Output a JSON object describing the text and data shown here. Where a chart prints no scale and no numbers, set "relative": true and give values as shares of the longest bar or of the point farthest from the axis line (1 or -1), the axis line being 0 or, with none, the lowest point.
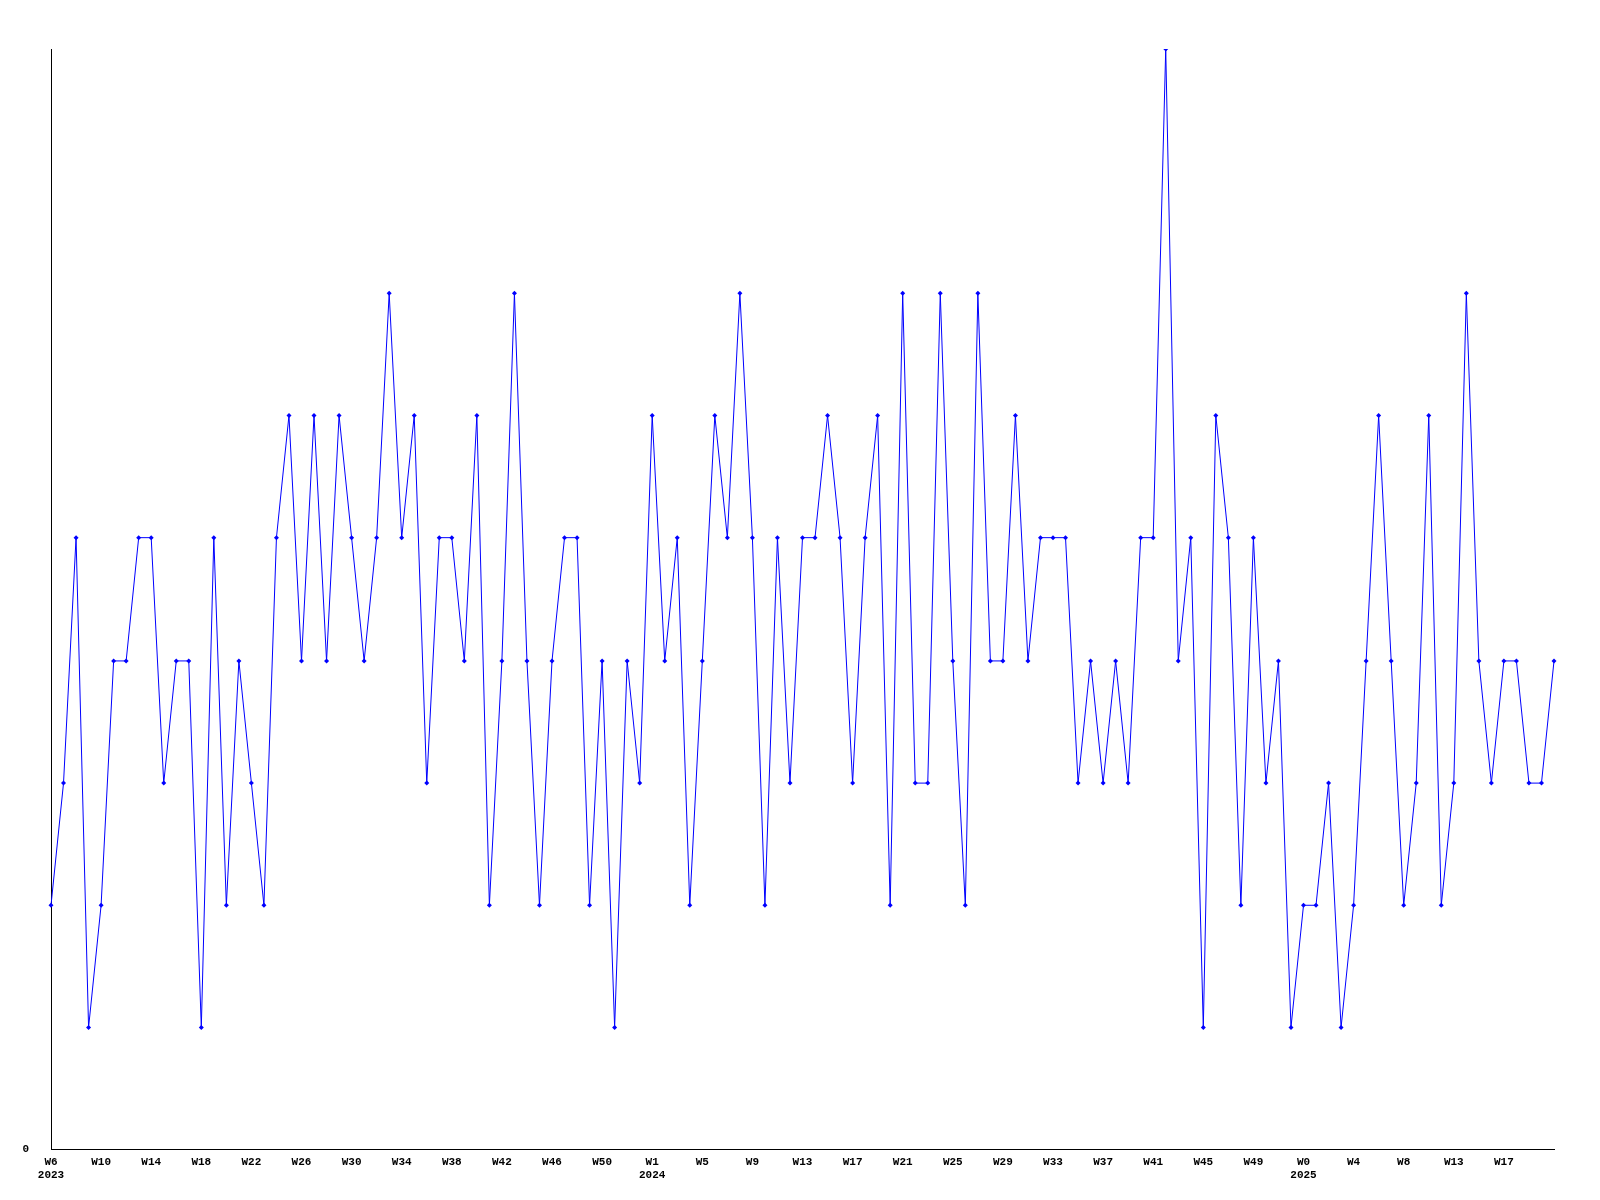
{
  "chart_data": {
    "type": "line",
    "relative": true,
    "marker": "diamond",
    "line_style": "solid",
    "grid": false,
    "legend": false,
    "annotations": [
      "0"
    ],
    "categories": [
      "W6\n2023",
      null,
      null,
      null,
      "W10",
      null,
      null,
      null,
      "W14",
      null,
      null,
      null,
      "W18",
      null,
      null,
      null,
      "W22",
      null,
      null,
      null,
      "W26",
      null,
      null,
      null,
      "W30",
      null,
      null,
      null,
      "W34",
      null,
      null,
      null,
      "W38",
      null,
      null,
      null,
      "W42",
      null,
      null,
      null,
      "W46",
      null,
      null,
      null,
      "W50",
      null,
      null,
      null,
      "W1\n2024",
      null,
      null,
      null,
      "W5",
      null,
      null,
      null,
      "W9",
      null,
      null,
      null,
      "W13",
      null,
      null,
      null,
      "W17",
      null,
      null,
      null,
      "W21",
      null,
      null,
      null,
      "W25",
      null,
      null,
      null,
      "W29",
      null,
      null,
      null,
      "W33",
      null,
      null,
      null,
      "W37",
      null,
      null,
      null,
      "W41",
      null,
      null,
      null,
      "W45",
      null,
      null,
      null,
      "W49",
      null,
      null,
      null,
      "W0\n2025",
      null,
      null,
      null,
      "W4",
      null,
      null,
      null,
      "W8",
      null,
      null,
      null,
      "W13",
      null,
      null,
      null,
      "W17",
      null,
      null,
      null,
      null
    ],
    "series": [
      {
        "color": "#0000ff",
        "values": [
          0.222,
          0.333,
          0.556,
          0.111,
          0.222,
          0.444,
          0.444,
          0.556,
          0.556,
          0.333,
          0.444,
          0.444,
          0.111,
          0.556,
          0.222,
          0.444,
          0.333,
          0.222,
          0.556,
          0.667,
          0.444,
          0.667,
          0.444,
          0.667,
          0.556,
          0.444,
          0.556,
          0.778,
          0.556,
          0.667,
          0.333,
          0.556,
          0.556,
          0.444,
          0.667,
          0.222,
          0.444,
          0.778,
          0.444,
          0.222,
          0.444,
          0.556,
          0.556,
          0.222,
          0.444,
          0.111,
          0.444,
          0.333,
          0.667,
          0.444,
          0.556,
          0.222,
          0.444,
          0.667,
          0.556,
          0.778,
          0.556,
          0.222,
          0.556,
          0.333,
          0.556,
          0.556,
          0.667,
          0.556,
          0.333,
          0.556,
          0.667,
          0.222,
          0.778,
          0.333,
          0.333,
          0.778,
          0.444,
          0.222,
          0.778,
          0.444,
          0.444,
          0.667,
          0.444,
          0.556,
          0.556,
          0.556,
          0.333,
          0.444,
          0.333,
          0.444,
          0.333,
          0.556,
          0.556,
          1,
          0.444,
          0.556,
          0.111,
          0.667,
          0.556,
          0.222,
          0.556,
          0.333,
          0.444,
          0.111,
          0.222,
          0.222,
          0.333,
          0.111,
          0.222,
          0.444,
          0.667,
          0.444,
          0.222,
          0.333,
          0.667,
          0.222,
          0.333,
          0.778,
          0.444,
          0.333,
          0.444,
          0.444,
          0.333,
          0.333,
          0.444
        ]
      }
    ]
  }
}
